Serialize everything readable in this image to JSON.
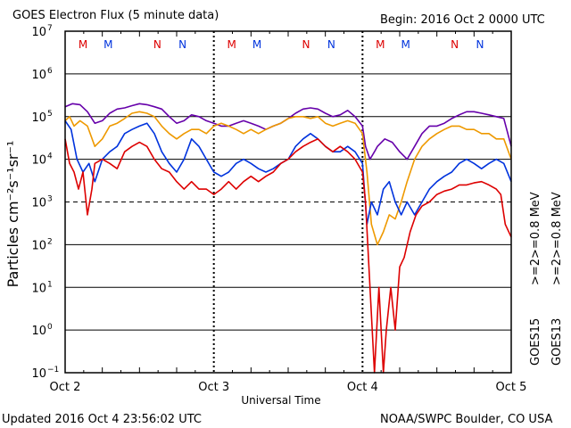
{
  "header": {
    "title": "GOES Electron Flux (5 minute data)",
    "begin": "Begin: 2016 Oct 2 0000 UTC"
  },
  "footer": {
    "updated": "Updated 2016 Oct  4 23:56:02 UTC",
    "credit": "NOAA/SWPC Boulder, CO USA"
  },
  "right_labels": {
    "goes15": "GOES15",
    "goes13": "GOES13",
    "goes15_2": ">=2",
    "goes15_08": ">=0.8 MeV",
    "goes13_2": ">=2",
    "goes13_08": ">=0.8 MeV"
  },
  "colors": {
    "goes15_2": "#0033dd",
    "goes15_08": "#6600aa",
    "goes13_2": "#dd0000",
    "goes13_08": "#ee9900",
    "marker_m_red": "#dd0000",
    "marker_m_blue": "#0033dd"
  },
  "chart_data": {
    "type": "line",
    "title": "GOES Electron Flux (5 minute data)",
    "xlabel": "Universal Time",
    "ylabel": "Particles cm⁻²s⁻¹sr⁻¹",
    "yscale": "log",
    "ylim_exp": [
      -1,
      7
    ],
    "yticks_exp": [
      -1,
      0,
      1,
      2,
      3,
      4,
      5,
      6,
      7
    ],
    "xlim_days": [
      0,
      3
    ],
    "xticks": [
      {
        "label": "Oct 2",
        "day": 0
      },
      {
        "label": "Oct 3",
        "day": 1
      },
      {
        "label": "Oct 4",
        "day": 2
      },
      {
        "label": "Oct 5",
        "day": 3
      }
    ],
    "threshold_exp": 3,
    "markers": [
      {
        "label": "M",
        "day": 0.12,
        "sat": "GOES13"
      },
      {
        "label": "M",
        "day": 0.29,
        "sat": "GOES15"
      },
      {
        "label": "N",
        "day": 0.62,
        "sat": "GOES13"
      },
      {
        "label": "N",
        "day": 0.79,
        "sat": "GOES15"
      },
      {
        "label": "M",
        "day": 1.12,
        "sat": "GOES13"
      },
      {
        "label": "M",
        "day": 1.29,
        "sat": "GOES15"
      },
      {
        "label": "N",
        "day": 1.62,
        "sat": "GOES13"
      },
      {
        "label": "N",
        "day": 1.79,
        "sat": "GOES15"
      },
      {
        "label": "M",
        "day": 2.12,
        "sat": "GOES13"
      },
      {
        "label": "M",
        "day": 2.29,
        "sat": "GOES15"
      },
      {
        "label": "N",
        "day": 2.62,
        "sat": "GOES13"
      },
      {
        "label": "N",
        "day": 2.79,
        "sat": "GOES15"
      }
    ],
    "series": [
      {
        "name": "GOES15 >=0.8 MeV",
        "color": "#6600aa",
        "points": [
          [
            0,
            170000
          ],
          [
            0.05,
            200000
          ],
          [
            0.1,
            190000
          ],
          [
            0.15,
            130000
          ],
          [
            0.2,
            70000
          ],
          [
            0.25,
            80000
          ],
          [
            0.3,
            120000
          ],
          [
            0.35,
            150000
          ],
          [
            0.4,
            160000
          ],
          [
            0.45,
            180000
          ],
          [
            0.5,
            200000
          ],
          [
            0.55,
            190000
          ],
          [
            0.6,
            170000
          ],
          [
            0.65,
            150000
          ],
          [
            0.7,
            100000
          ],
          [
            0.75,
            70000
          ],
          [
            0.8,
            80000
          ],
          [
            0.85,
            110000
          ],
          [
            0.9,
            100000
          ],
          [
            0.95,
            80000
          ],
          [
            1.0,
            70000
          ],
          [
            1.05,
            60000
          ],
          [
            1.1,
            60000
          ],
          [
            1.15,
            70000
          ],
          [
            1.2,
            80000
          ],
          [
            1.25,
            70000
          ],
          [
            1.3,
            60000
          ],
          [
            1.35,
            50000
          ],
          [
            1.4,
            60000
          ],
          [
            1.45,
            70000
          ],
          [
            1.5,
            90000
          ],
          [
            1.55,
            120000
          ],
          [
            1.6,
            150000
          ],
          [
            1.65,
            160000
          ],
          [
            1.7,
            150000
          ],
          [
            1.75,
            120000
          ],
          [
            1.8,
            100000
          ],
          [
            1.85,
            110000
          ],
          [
            1.9,
            140000
          ],
          [
            1.95,
            100000
          ],
          [
            2.0,
            60000
          ],
          [
            2.02,
            20000
          ],
          [
            2.05,
            10000
          ],
          [
            2.08,
            15000
          ],
          [
            2.1,
            20000
          ],
          [
            2.15,
            30000
          ],
          [
            2.2,
            25000
          ],
          [
            2.25,
            15000
          ],
          [
            2.3,
            10000
          ],
          [
            2.35,
            20000
          ],
          [
            2.4,
            40000
          ],
          [
            2.45,
            60000
          ],
          [
            2.5,
            60000
          ],
          [
            2.55,
            70000
          ],
          [
            2.6,
            90000
          ],
          [
            2.65,
            110000
          ],
          [
            2.7,
            130000
          ],
          [
            2.75,
            130000
          ],
          [
            2.8,
            120000
          ],
          [
            2.85,
            110000
          ],
          [
            2.9,
            100000
          ],
          [
            2.95,
            90000
          ],
          [
            3.0,
            20000
          ]
        ]
      },
      {
        "name": "GOES13 >=0.8 MeV",
        "color": "#ee9900",
        "points": [
          [
            0,
            80000
          ],
          [
            0.03,
            100000
          ],
          [
            0.06,
            60000
          ],
          [
            0.1,
            80000
          ],
          [
            0.15,
            60000
          ],
          [
            0.2,
            20000
          ],
          [
            0.25,
            30000
          ],
          [
            0.3,
            60000
          ],
          [
            0.35,
            70000
          ],
          [
            0.4,
            90000
          ],
          [
            0.45,
            120000
          ],
          [
            0.5,
            130000
          ],
          [
            0.55,
            120000
          ],
          [
            0.6,
            100000
          ],
          [
            0.65,
            60000
          ],
          [
            0.7,
            40000
          ],
          [
            0.75,
            30000
          ],
          [
            0.8,
            40000
          ],
          [
            0.85,
            50000
          ],
          [
            0.9,
            50000
          ],
          [
            0.95,
            40000
          ],
          [
            1.0,
            60000
          ],
          [
            1.05,
            70000
          ],
          [
            1.1,
            60000
          ],
          [
            1.15,
            50000
          ],
          [
            1.2,
            40000
          ],
          [
            1.25,
            50000
          ],
          [
            1.3,
            40000
          ],
          [
            1.35,
            50000
          ],
          [
            1.4,
            60000
          ],
          [
            1.45,
            70000
          ],
          [
            1.5,
            90000
          ],
          [
            1.55,
            100000
          ],
          [
            1.6,
            100000
          ],
          [
            1.65,
            90000
          ],
          [
            1.7,
            100000
          ],
          [
            1.75,
            70000
          ],
          [
            1.8,
            60000
          ],
          [
            1.85,
            70000
          ],
          [
            1.9,
            80000
          ],
          [
            1.95,
            70000
          ],
          [
            2.0,
            40000
          ],
          [
            2.03,
            5000
          ],
          [
            2.06,
            300
          ],
          [
            2.1,
            100
          ],
          [
            2.14,
            200
          ],
          [
            2.18,
            500
          ],
          [
            2.22,
            400
          ],
          [
            2.26,
            1000
          ],
          [
            2.3,
            3000
          ],
          [
            2.35,
            10000
          ],
          [
            2.4,
            20000
          ],
          [
            2.45,
            30000
          ],
          [
            2.5,
            40000
          ],
          [
            2.55,
            50000
          ],
          [
            2.6,
            60000
          ],
          [
            2.65,
            60000
          ],
          [
            2.7,
            50000
          ],
          [
            2.75,
            50000
          ],
          [
            2.8,
            40000
          ],
          [
            2.85,
            40000
          ],
          [
            2.9,
            30000
          ],
          [
            2.95,
            30000
          ],
          [
            3.0,
            10000
          ]
        ]
      },
      {
        "name": "GOES15 >=2 MeV",
        "color": "#0033dd",
        "points": [
          [
            0,
            80000
          ],
          [
            0.04,
            50000
          ],
          [
            0.08,
            10000
          ],
          [
            0.12,
            5000
          ],
          [
            0.16,
            8000
          ],
          [
            0.2,
            3000
          ],
          [
            0.25,
            10000
          ],
          [
            0.3,
            15000
          ],
          [
            0.35,
            20000
          ],
          [
            0.4,
            40000
          ],
          [
            0.45,
            50000
          ],
          [
            0.5,
            60000
          ],
          [
            0.55,
            70000
          ],
          [
            0.6,
            40000
          ],
          [
            0.65,
            15000
          ],
          [
            0.7,
            8000
          ],
          [
            0.75,
            5000
          ],
          [
            0.8,
            10000
          ],
          [
            0.85,
            30000
          ],
          [
            0.9,
            20000
          ],
          [
            0.95,
            10000
          ],
          [
            1.0,
            5000
          ],
          [
            1.05,
            4000
          ],
          [
            1.1,
            5000
          ],
          [
            1.15,
            8000
          ],
          [
            1.2,
            10000
          ],
          [
            1.25,
            8000
          ],
          [
            1.3,
            6000
          ],
          [
            1.35,
            5000
          ],
          [
            1.4,
            6000
          ],
          [
            1.45,
            8000
          ],
          [
            1.5,
            10000
          ],
          [
            1.55,
            20000
          ],
          [
            1.6,
            30000
          ],
          [
            1.65,
            40000
          ],
          [
            1.7,
            30000
          ],
          [
            1.75,
            20000
          ],
          [
            1.8,
            15000
          ],
          [
            1.85,
            15000
          ],
          [
            1.9,
            20000
          ],
          [
            1.95,
            15000
          ],
          [
            2.0,
            8000
          ],
          [
            2.03,
            300
          ],
          [
            2.06,
            1000
          ],
          [
            2.1,
            500
          ],
          [
            2.14,
            2000
          ],
          [
            2.18,
            3000
          ],
          [
            2.22,
            1000
          ],
          [
            2.26,
            500
          ],
          [
            2.3,
            1000
          ],
          [
            2.35,
            500
          ],
          [
            2.4,
            1000
          ],
          [
            2.45,
            2000
          ],
          [
            2.5,
            3000
          ],
          [
            2.55,
            4000
          ],
          [
            2.6,
            5000
          ],
          [
            2.65,
            8000
          ],
          [
            2.7,
            10000
          ],
          [
            2.75,
            8000
          ],
          [
            2.8,
            6000
          ],
          [
            2.85,
            8000
          ],
          [
            2.9,
            10000
          ],
          [
            2.95,
            8000
          ],
          [
            3.0,
            3000
          ]
        ]
      },
      {
        "name": "GOES13 >=2 MeV",
        "color": "#dd0000",
        "points": [
          [
            0,
            30000
          ],
          [
            0.03,
            8000
          ],
          [
            0.06,
            5000
          ],
          [
            0.09,
            2000
          ],
          [
            0.12,
            5000
          ],
          [
            0.15,
            500
          ],
          [
            0.18,
            2000
          ],
          [
            0.2,
            8000
          ],
          [
            0.25,
            10000
          ],
          [
            0.3,
            8000
          ],
          [
            0.35,
            6000
          ],
          [
            0.4,
            15000
          ],
          [
            0.45,
            20000
          ],
          [
            0.5,
            25000
          ],
          [
            0.55,
            20000
          ],
          [
            0.6,
            10000
          ],
          [
            0.65,
            6000
          ],
          [
            0.7,
            5000
          ],
          [
            0.75,
            3000
          ],
          [
            0.8,
            2000
          ],
          [
            0.85,
            3000
          ],
          [
            0.9,
            2000
          ],
          [
            0.95,
            2000
          ],
          [
            1.0,
            1500
          ],
          [
            1.05,
            2000
          ],
          [
            1.1,
            3000
          ],
          [
            1.15,
            2000
          ],
          [
            1.2,
            3000
          ],
          [
            1.25,
            4000
          ],
          [
            1.3,
            3000
          ],
          [
            1.35,
            4000
          ],
          [
            1.4,
            5000
          ],
          [
            1.45,
            8000
          ],
          [
            1.5,
            10000
          ],
          [
            1.55,
            15000
          ],
          [
            1.6,
            20000
          ],
          [
            1.65,
            25000
          ],
          [
            1.7,
            30000
          ],
          [
            1.75,
            20000
          ],
          [
            1.8,
            15000
          ],
          [
            1.85,
            20000
          ],
          [
            1.9,
            15000
          ],
          [
            1.95,
            10000
          ],
          [
            2.0,
            5000
          ],
          [
            2.02,
            1000
          ],
          [
            2.05,
            10
          ],
          [
            2.08,
            0.1
          ],
          [
            2.11,
            10
          ],
          [
            2.14,
            0.1
          ],
          [
            2.16,
            1
          ],
          [
            2.19,
            10
          ],
          [
            2.22,
            1
          ],
          [
            2.25,
            30
          ],
          [
            2.28,
            50
          ],
          [
            2.32,
            200
          ],
          [
            2.36,
            500
          ],
          [
            2.4,
            800
          ],
          [
            2.45,
            1000
          ],
          [
            2.5,
            1500
          ],
          [
            2.55,
            1800
          ],
          [
            2.6,
            2000
          ],
          [
            2.65,
            2500
          ],
          [
            2.7,
            2500
          ],
          [
            2.75,
            2800
          ],
          [
            2.8,
            3000
          ],
          [
            2.85,
            2500
          ],
          [
            2.9,
            2000
          ],
          [
            2.93,
            1500
          ],
          [
            2.96,
            300
          ],
          [
            3.0,
            150
          ]
        ]
      }
    ]
  }
}
